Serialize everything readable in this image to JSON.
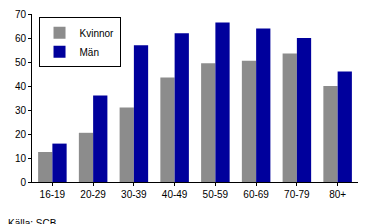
{
  "chart_data": {
    "type": "bar",
    "categories": [
      "16-19",
      "20-29",
      "30-39",
      "40-49",
      "50-59",
      "60-69",
      "70-79",
      "80+"
    ],
    "series": [
      {
        "name": "Kvinnor",
        "color": "#8c8c8c",
        "values": [
          12.5,
          20.5,
          31,
          43.5,
          49.5,
          50.5,
          53.5,
          40
        ]
      },
      {
        "name": "Män",
        "color": "#00009c",
        "values": [
          16,
          36,
          57,
          62,
          66.5,
          64,
          60,
          46
        ]
      }
    ],
    "ylim": [
      0,
      70
    ],
    "yticks": [
      0,
      10,
      20,
      30,
      40,
      50,
      60,
      70
    ],
    "grid": false,
    "legend": "upper left",
    "source": "Källa: SCB"
  }
}
